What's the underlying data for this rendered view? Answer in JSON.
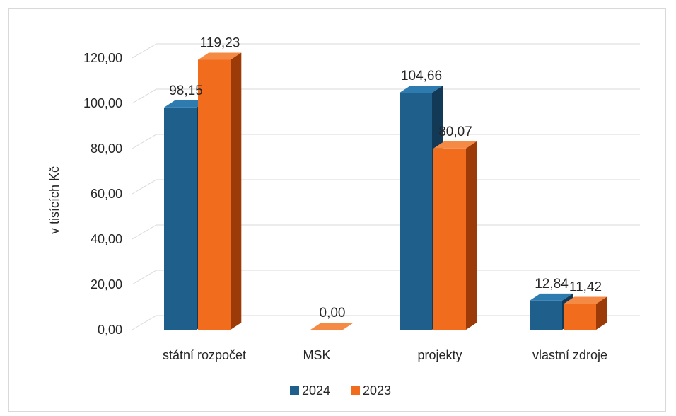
{
  "chart_data": {
    "type": "bar",
    "ylabel": "v tisících Kč",
    "categories": [
      "státní rozpočet",
      "MSK",
      "projekty",
      "vlastní zdroje"
    ],
    "ylim": [
      0,
      120
    ],
    "yticks": [
      "0,00",
      "20,00",
      "40,00",
      "60,00",
      "80,00",
      "100,00",
      "120,00"
    ],
    "series": [
      {
        "name": "2024",
        "values": [
          98.15,
          null,
          104.66,
          12.84
        ],
        "labels": [
          "98,15",
          "",
          "104,66",
          "12,84"
        ],
        "color": "#1f5f8b",
        "color_dark": "#123a57",
        "color_top": "#2e7bb0"
      },
      {
        "name": "2023",
        "values": [
          119.23,
          0.0,
          80.07,
          11.42
        ],
        "labels": [
          "119,23",
          "0,00",
          "80,07",
          "11,42"
        ],
        "color": "#f26c1d",
        "color_dark": "#9c3b08",
        "color_top": "#f58a45"
      }
    ],
    "grid": true,
    "legend": "bottom"
  }
}
